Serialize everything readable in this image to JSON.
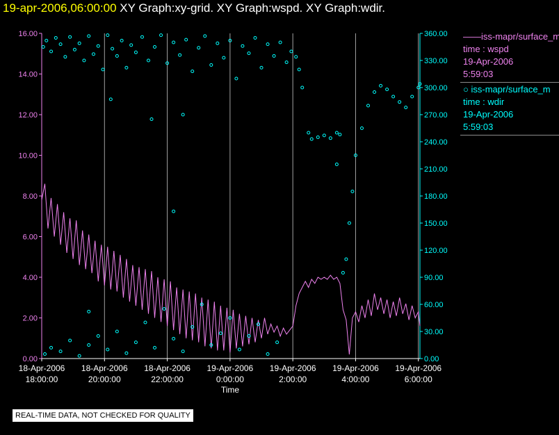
{
  "header": {
    "date_label": "19-apr-2006,06:00:00",
    "graphs_label": "XY Graph:xy-grid.  XY Graph:wspd.  XY Graph:wdir."
  },
  "legend": {
    "wspd": {
      "marker": "——",
      "name": "iss-mapr/surface_m",
      "var": "time : wspd",
      "date": "19-Apr-2006",
      "time": "5:59:03"
    },
    "wdir": {
      "marker": "○",
      "name": "iss-mapr/surface_m",
      "var": "time : wdir",
      "date": "19-Apr-2006",
      "time": "5:59:03"
    }
  },
  "notice": "REAL-TIME DATA, NOT CHECKED FOR QUALITY",
  "colors": {
    "wspd": "#ee82ee",
    "wdir": "#00ffff",
    "axis_left": "#ee82ee",
    "axis_right": "#00ffff",
    "grid": "#cccccc"
  },
  "chart_data": {
    "type": "line",
    "title": "",
    "xlabel": "Time",
    "ylabel_left": "",
    "ylabel_right": "",
    "x_unit": "hours since 18-Apr-2006 18:00",
    "xlim": [
      0,
      12.05
    ],
    "ylim_left": [
      0,
      16
    ],
    "ylim_right": [
      0,
      360
    ],
    "left_ticks": [
      "0.00",
      "2.00",
      "4.00",
      "6.00",
      "8.00",
      "10.00",
      "12.00",
      "14.00",
      "16.00"
    ],
    "right_ticks": [
      "0.00",
      "30.00",
      "60.00",
      "90.00",
      "120.00",
      "150.00",
      "180.00",
      "210.00",
      "240.00",
      "270.00",
      "300.00",
      "330.00",
      "360.00"
    ],
    "x_ticks": [
      {
        "x": 0,
        "line1": "18-Apr-2006",
        "line2": "18:00:00"
      },
      {
        "x": 2,
        "line1": "18-Apr-2006",
        "line2": "20:00:00"
      },
      {
        "x": 4,
        "line1": "18-Apr-2006",
        "line2": "22:00:00"
      },
      {
        "x": 6,
        "line1": "19-Apr-2006",
        "line2": "0:00:00"
      },
      {
        "x": 8,
        "line1": "19-Apr-2006",
        "line2": "2:00:00"
      },
      {
        "x": 10,
        "line1": "19-Apr-2006",
        "line2": "4:00:00"
      },
      {
        "x": 12,
        "line1": "19-Apr-2006",
        "line2": "6:00:00"
      }
    ],
    "grid_x": [
      0,
      2,
      4,
      6,
      8,
      10,
      12
    ],
    "series": [
      {
        "name": "wspd",
        "axis": "left",
        "style": "line",
        "points": [
          [
            0.0,
            7.8
          ],
          [
            0.1,
            8.6
          ],
          [
            0.2,
            6.4
          ],
          [
            0.3,
            7.9
          ],
          [
            0.4,
            6.0
          ],
          [
            0.5,
            7.6
          ],
          [
            0.6,
            5.6
          ],
          [
            0.7,
            7.2
          ],
          [
            0.8,
            5.2
          ],
          [
            0.9,
            6.9
          ],
          [
            1.0,
            4.9
          ],
          [
            1.1,
            6.8
          ],
          [
            1.2,
            4.6
          ],
          [
            1.3,
            6.3
          ],
          [
            1.4,
            4.4
          ],
          [
            1.5,
            6.1
          ],
          [
            1.6,
            4.2
          ],
          [
            1.7,
            5.8
          ],
          [
            1.8,
            3.8
          ],
          [
            1.9,
            5.6
          ],
          [
            2.0,
            3.6
          ],
          [
            2.1,
            5.5
          ],
          [
            2.2,
            3.4
          ],
          [
            2.3,
            5.3
          ],
          [
            2.4,
            3.3
          ],
          [
            2.5,
            5.1
          ],
          [
            2.6,
            3.0
          ],
          [
            2.7,
            4.9
          ],
          [
            2.8,
            2.8
          ],
          [
            2.9,
            4.6
          ],
          [
            3.0,
            2.6
          ],
          [
            3.1,
            4.5
          ],
          [
            3.2,
            2.4
          ],
          [
            3.3,
            4.4
          ],
          [
            3.4,
            2.2
          ],
          [
            3.5,
            4.3
          ],
          [
            3.6,
            2.0
          ],
          [
            3.7,
            4.0
          ],
          [
            3.8,
            1.8
          ],
          [
            3.9,
            3.9
          ],
          [
            4.0,
            1.6
          ],
          [
            4.1,
            3.8
          ],
          [
            4.2,
            1.4
          ],
          [
            4.3,
            3.5
          ],
          [
            4.4,
            1.2
          ],
          [
            4.5,
            3.4
          ],
          [
            4.6,
            1.0
          ],
          [
            4.7,
            3.3
          ],
          [
            4.8,
            0.9
          ],
          [
            4.9,
            3.2
          ],
          [
            5.0,
            0.8
          ],
          [
            5.1,
            3.0
          ],
          [
            5.2,
            0.6
          ],
          [
            5.3,
            2.9
          ],
          [
            5.4,
            0.5
          ],
          [
            5.5,
            2.8
          ],
          [
            5.6,
            0.4
          ],
          [
            5.7,
            2.6
          ],
          [
            5.8,
            0.4
          ],
          [
            5.9,
            2.5
          ],
          [
            6.0,
            0.3
          ],
          [
            6.1,
            2.4
          ],
          [
            6.2,
            0.5
          ],
          [
            6.3,
            2.2
          ],
          [
            6.4,
            0.6
          ],
          [
            6.5,
            2.1
          ],
          [
            6.6,
            0.7
          ],
          [
            6.7,
            2.0
          ],
          [
            6.8,
            0.8
          ],
          [
            6.9,
            1.9
          ],
          [
            7.0,
            1.0
          ],
          [
            7.1,
            2.0
          ],
          [
            7.2,
            1.2
          ],
          [
            7.3,
            1.7
          ],
          [
            7.4,
            1.3
          ],
          [
            7.5,
            1.6
          ],
          [
            7.6,
            1.1
          ],
          [
            7.7,
            1.5
          ],
          [
            7.8,
            1.2
          ],
          [
            7.9,
            1.4
          ],
          [
            8.0,
            1.6
          ],
          [
            8.1,
            2.6
          ],
          [
            8.2,
            3.2
          ],
          [
            8.3,
            3.5
          ],
          [
            8.4,
            3.8
          ],
          [
            8.5,
            3.5
          ],
          [
            8.6,
            3.9
          ],
          [
            8.7,
            3.7
          ],
          [
            8.8,
            4.0
          ],
          [
            8.9,
            3.9
          ],
          [
            9.0,
            4.0
          ],
          [
            9.1,
            3.9
          ],
          [
            9.2,
            4.1
          ],
          [
            9.3,
            3.9
          ],
          [
            9.4,
            4.0
          ],
          [
            9.5,
            3.7
          ],
          [
            9.6,
            2.4
          ],
          [
            9.7,
            1.9
          ],
          [
            9.8,
            0.2
          ],
          [
            9.9,
            2.0
          ],
          [
            10.0,
            2.3
          ],
          [
            10.1,
            1.8
          ],
          [
            10.2,
            2.6
          ],
          [
            10.3,
            2.0
          ],
          [
            10.4,
            2.9
          ],
          [
            10.5,
            2.1
          ],
          [
            10.6,
            3.2
          ],
          [
            10.7,
            2.4
          ],
          [
            10.8,
            3.0
          ],
          [
            10.9,
            2.2
          ],
          [
            11.0,
            2.9
          ],
          [
            11.1,
            2.0
          ],
          [
            11.2,
            2.8
          ],
          [
            11.3,
            2.1
          ],
          [
            11.4,
            3.0
          ],
          [
            11.5,
            2.2
          ],
          [
            11.6,
            2.7
          ],
          [
            11.7,
            1.9
          ],
          [
            11.8,
            2.6
          ],
          [
            11.9,
            2.0
          ],
          [
            12.0,
            2.3
          ],
          [
            12.05,
            1.6
          ]
        ]
      },
      {
        "name": "wdir",
        "axis": "right",
        "style": "scatter",
        "points": [
          [
            0.05,
            345
          ],
          [
            0.15,
            352
          ],
          [
            0.3,
            340
          ],
          [
            0.45,
            355
          ],
          [
            0.6,
            348
          ],
          [
            0.75,
            334
          ],
          [
            0.9,
            356
          ],
          [
            1.05,
            342
          ],
          [
            1.2,
            349
          ],
          [
            1.35,
            330
          ],
          [
            1.5,
            357
          ],
          [
            1.65,
            337
          ],
          [
            1.8,
            346
          ],
          [
            1.95,
            320
          ],
          [
            2.1,
            358
          ],
          [
            2.25,
            343
          ],
          [
            2.4,
            335
          ],
          [
            2.55,
            352
          ],
          [
            2.7,
            322
          ],
          [
            2.85,
            347
          ],
          [
            3.0,
            339
          ],
          [
            3.2,
            356
          ],
          [
            3.4,
            330
          ],
          [
            3.6,
            345
          ],
          [
            3.8,
            358
          ],
          [
            4.0,
            327
          ],
          [
            4.2,
            350
          ],
          [
            4.4,
            336
          ],
          [
            4.6,
            353
          ],
          [
            4.8,
            318
          ],
          [
            5.0,
            344
          ],
          [
            5.2,
            357
          ],
          [
            5.4,
            325
          ],
          [
            5.6,
            349
          ],
          [
            5.8,
            333
          ],
          [
            6.0,
            352
          ],
          [
            6.2,
            310
          ],
          [
            6.4,
            346
          ],
          [
            6.6,
            338
          ],
          [
            6.8,
            355
          ],
          [
            7.0,
            322
          ],
          [
            7.2,
            348
          ],
          [
            7.4,
            335
          ],
          [
            7.6,
            350
          ],
          [
            7.8,
            328
          ],
          [
            7.95,
            340
          ],
          [
            8.1,
            334
          ],
          [
            8.2,
            320
          ],
          [
            8.3,
            300
          ],
          [
            0.1,
            5
          ],
          [
            0.3,
            12
          ],
          [
            0.6,
            8
          ],
          [
            0.9,
            20
          ],
          [
            1.2,
            3
          ],
          [
            1.5,
            15
          ],
          [
            1.8,
            25
          ],
          [
            2.1,
            10
          ],
          [
            2.4,
            30
          ],
          [
            2.7,
            6
          ],
          [
            3.0,
            18
          ],
          [
            3.3,
            40
          ],
          [
            3.6,
            12
          ],
          [
            3.9,
            55
          ],
          [
            4.2,
            22
          ],
          [
            4.5,
            8
          ],
          [
            4.8,
            35
          ],
          [
            5.1,
            60
          ],
          [
            5.4,
            15
          ],
          [
            5.7,
            28
          ],
          [
            6.0,
            45
          ],
          [
            6.3,
            10
          ],
          [
            6.6,
            25
          ],
          [
            6.9,
            38
          ],
          [
            7.2,
            5
          ],
          [
            7.5,
            18
          ],
          [
            1.5,
            52
          ],
          [
            2.2,
            287
          ],
          [
            4.2,
            163
          ],
          [
            4.5,
            270
          ],
          [
            3.5,
            265
          ],
          [
            9.4,
            215
          ],
          [
            8.5,
            250
          ],
          [
            8.6,
            243
          ],
          [
            8.8,
            245
          ],
          [
            9.0,
            247
          ],
          [
            9.2,
            244
          ],
          [
            9.4,
            250
          ],
          [
            9.5,
            248
          ],
          [
            9.6,
            95
          ],
          [
            9.7,
            110
          ],
          [
            9.8,
            150
          ],
          [
            9.9,
            185
          ],
          [
            10.0,
            225
          ],
          [
            10.2,
            255
          ],
          [
            10.4,
            280
          ],
          [
            10.6,
            295
          ],
          [
            10.8,
            302
          ],
          [
            11.0,
            298
          ],
          [
            11.2,
            290
          ],
          [
            11.4,
            284
          ],
          [
            11.6,
            278
          ],
          [
            11.8,
            290
          ],
          [
            12.0,
            300
          ],
          [
            12.05,
            304
          ]
        ]
      }
    ]
  }
}
